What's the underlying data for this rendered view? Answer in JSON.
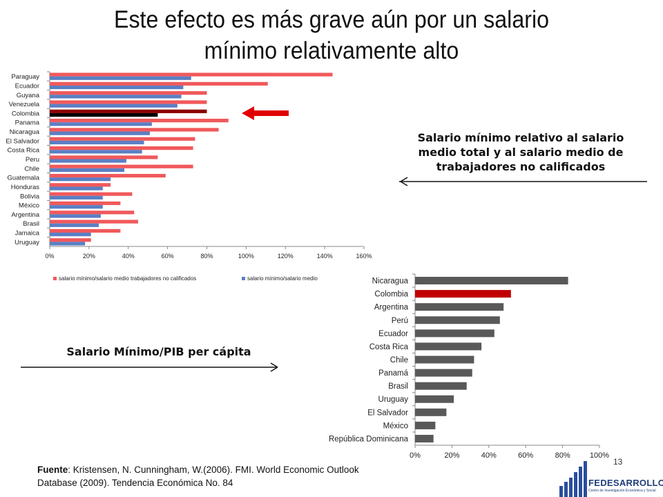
{
  "title_line1": "Este efecto es más grave aún por un salario",
  "title_line2": "mínimo relativamente alto",
  "annotation_top": "Salario mínimo relativo al salario medio total y al salario medio de trabajadores no calificados",
  "annotation_bottom": "Salario Mínimo/PIB per cápita",
  "footer_label": "Fuente",
  "footer_text": ": Kristensen, N.  Cunningham, W.(2006). FMI.  World Economic Outlook Database (2009). Tendencia Económica No. 84",
  "page_number": "13",
  "logo_text": "FEDESARROLLO",
  "logo_subtext": "Centro de Investigación Económica y Social",
  "colors": {
    "red": "#f0595b",
    "blue": "#5b7fc4",
    "highlight_red": "#8c0000",
    "highlight_dark": "#000000",
    "gray_bar": "#595959",
    "colombia_red": "#c00000",
    "arrow_red": "#e00000"
  },
  "chart_data": [
    {
      "type": "bar",
      "orientation": "horizontal",
      "categories": [
        "Paraguay",
        "Ecuador",
        "Guyana",
        "Venezuela",
        "Colombia",
        "Panama",
        "Nicaragua",
        "El Salvador",
        "Costa Rica",
        "Peru",
        "Chile",
        "Guatemala",
        "Honduras",
        "Bolivia",
        "México",
        "Argentina",
        "Brasil",
        "Jamaica",
        "Uruguay"
      ],
      "series": [
        {
          "name": "salario mínimo/salario medio trabajadores  no calificados",
          "values": [
            1.44,
            1.11,
            0.8,
            0.8,
            0.8,
            0.91,
            0.86,
            0.74,
            0.73,
            0.55,
            0.73,
            0.59,
            0.31,
            0.42,
            0.36,
            0.43,
            0.45,
            0.36,
            0.21
          ]
        },
        {
          "name": "salario mínimo/salario medio",
          "values": [
            0.72,
            0.68,
            0.67,
            0.65,
            0.55,
            0.52,
            0.51,
            0.48,
            0.47,
            0.39,
            0.38,
            0.31,
            0.27,
            0.27,
            0.27,
            0.26,
            0.25,
            0.21,
            0.18
          ]
        }
      ],
      "highlight": "Colombia",
      "xticks": [
        "0%",
        "20%",
        "40%",
        "60%",
        "80%",
        "100%",
        "120%",
        "140%",
        "160%"
      ],
      "xlim": [
        0,
        1.6
      ],
      "legend": "bottom"
    },
    {
      "type": "bar",
      "orientation": "horizontal",
      "categories": [
        "Nicaragua",
        "Colombia",
        "Argentina",
        "Perú",
        "Ecuador",
        "Costa Rica",
        "Chile",
        "Panamá",
        "Brasil",
        "Uruguay",
        "El Salvador",
        "México",
        "República Dominicana"
      ],
      "values": [
        0.83,
        0.52,
        0.48,
        0.46,
        0.43,
        0.36,
        0.32,
        0.31,
        0.28,
        0.21,
        0.17,
        0.11,
        0.1
      ],
      "highlight": "Colombia",
      "xticks": [
        "0%",
        "20%",
        "40%",
        "60%",
        "80%",
        "100%"
      ],
      "xlim": [
        0,
        1.0
      ]
    }
  ]
}
